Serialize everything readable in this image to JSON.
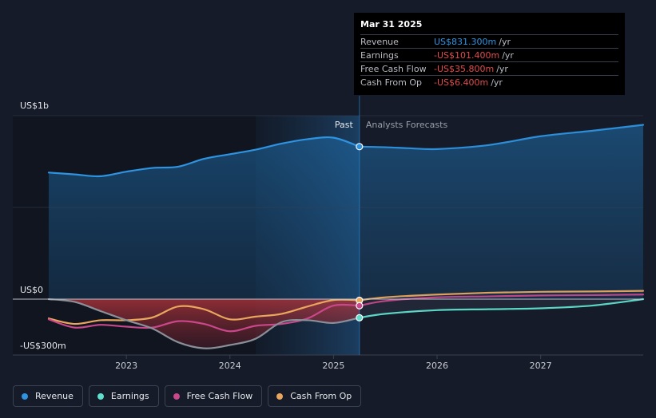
{
  "chart_data": {
    "type": "line",
    "y_label_top": "US$1b",
    "y_label_zero": "US$0",
    "y_label_bottom": "-US$300m",
    "ylim": [
      -300,
      1000
    ],
    "xlim": [
      2022.15,
      2027.99
    ],
    "x_ticks": [
      {
        "value": 2023,
        "label": "2023"
      },
      {
        "value": 2024,
        "label": "2024"
      },
      {
        "value": 2025,
        "label": "2025"
      },
      {
        "value": 2026,
        "label": "2026"
      },
      {
        "value": 2027,
        "label": "2027"
      }
    ],
    "past_label": "Past",
    "forecast_label": "Analysts Forecasts",
    "divider_x": 2025.25,
    "shade_start_x": 2024.25,
    "series": [
      {
        "name": "Revenue",
        "color": "#2e93e0",
        "points": [
          [
            2022.25,
            690
          ],
          [
            2022.5,
            680
          ],
          [
            2022.75,
            670
          ],
          [
            2023,
            695
          ],
          [
            2023.25,
            715
          ],
          [
            2023.5,
            722
          ],
          [
            2023.75,
            765
          ],
          [
            2024,
            790
          ],
          [
            2024.25,
            815
          ],
          [
            2024.5,
            848
          ],
          [
            2024.75,
            872
          ],
          [
            2025,
            880
          ],
          [
            2025.25,
            831.3
          ],
          [
            2025.5,
            828
          ],
          [
            2025.75,
            822
          ],
          [
            2026,
            818
          ],
          [
            2026.5,
            840
          ],
          [
            2027,
            888
          ],
          [
            2027.5,
            918
          ],
          [
            2027.99,
            950
          ]
        ]
      },
      {
        "name": "Earnings",
        "color": "#5fe0cd",
        "points": [
          [
            2022.25,
            0
          ],
          [
            2022.5,
            -15
          ],
          [
            2022.75,
            -65
          ],
          [
            2023,
            -115
          ],
          [
            2023.25,
            -160
          ],
          [
            2023.5,
            -235
          ],
          [
            2023.75,
            -268
          ],
          [
            2024,
            -250
          ],
          [
            2024.25,
            -215
          ],
          [
            2024.5,
            -125
          ],
          [
            2024.75,
            -115
          ],
          [
            2025,
            -130
          ],
          [
            2025.25,
            -101.4
          ],
          [
            2025.5,
            -80
          ],
          [
            2026,
            -60
          ],
          [
            2026.5,
            -55
          ],
          [
            2027,
            -50
          ],
          [
            2027.5,
            -35
          ],
          [
            2027.99,
            0
          ]
        ]
      },
      {
        "name": "Free Cash Flow",
        "color": "#c9478a",
        "points": [
          [
            2022.25,
            -110
          ],
          [
            2022.5,
            -155
          ],
          [
            2022.75,
            -140
          ],
          [
            2023,
            -150
          ],
          [
            2023.25,
            -155
          ],
          [
            2023.5,
            -120
          ],
          [
            2023.75,
            -135
          ],
          [
            2024,
            -175
          ],
          [
            2024.25,
            -145
          ],
          [
            2024.5,
            -135
          ],
          [
            2024.75,
            -105
          ],
          [
            2025,
            -35
          ],
          [
            2025.25,
            -35.8
          ],
          [
            2025.5,
            -10
          ],
          [
            2026,
            10
          ],
          [
            2026.5,
            15
          ],
          [
            2027,
            20
          ],
          [
            2027.5,
            22
          ],
          [
            2027.99,
            25
          ]
        ]
      },
      {
        "name": "Cash From Op",
        "color": "#e9a65c",
        "points": [
          [
            2022.25,
            -105
          ],
          [
            2022.5,
            -135
          ],
          [
            2022.75,
            -115
          ],
          [
            2023,
            -115
          ],
          [
            2023.25,
            -100
          ],
          [
            2023.5,
            -40
          ],
          [
            2023.75,
            -55
          ],
          [
            2024,
            -110
          ],
          [
            2024.25,
            -95
          ],
          [
            2024.5,
            -80
          ],
          [
            2024.75,
            -40
          ],
          [
            2025,
            -5
          ],
          [
            2025.25,
            -6.4
          ],
          [
            2025.5,
            10
          ],
          [
            2026,
            25
          ],
          [
            2026.5,
            35
          ],
          [
            2027,
            40
          ],
          [
            2027.5,
            42
          ],
          [
            2027.99,
            45
          ]
        ]
      }
    ]
  },
  "tooltip": {
    "date": "Mar 31 2025",
    "rows": [
      {
        "label": "Revenue",
        "value": "US$831.300m",
        "unit": "/yr",
        "color": "#2e93e0"
      },
      {
        "label": "Earnings",
        "value": "-US$101.400m",
        "unit": "/yr",
        "color": "#e24a4a"
      },
      {
        "label": "Free Cash Flow",
        "value": "-US$35.800m",
        "unit": "/yr",
        "color": "#e24a4a"
      },
      {
        "label": "Cash From Op",
        "value": "-US$6.400m",
        "unit": "/yr",
        "color": "#e24a4a"
      }
    ]
  },
  "legend": [
    {
      "label": "Revenue",
      "color": "#2e93e0"
    },
    {
      "label": "Earnings",
      "color": "#5fe0cd"
    },
    {
      "label": "Free Cash Flow",
      "color": "#c9478a"
    },
    {
      "label": "Cash From Op",
      "color": "#e9a65c"
    }
  ]
}
